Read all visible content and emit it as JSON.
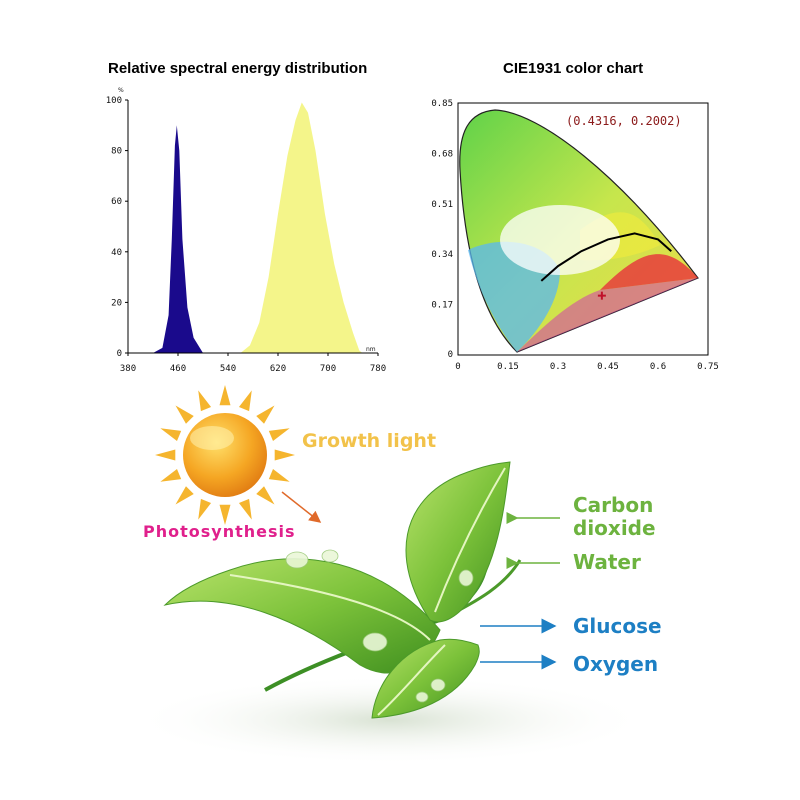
{
  "spectral_title": "Relative spectral energy distribution",
  "cie_title": "CIE1931 color chart",
  "chart_data": [
    {
      "type": "area",
      "title": "Relative spectral energy distribution",
      "ylabel_unit": "%",
      "xlabel_unit": "nm",
      "xlim": [
        380,
        780
      ],
      "ylim": [
        0,
        100
      ],
      "x_ticks": [
        380,
        460,
        540,
        620,
        700,
        780
      ],
      "y_ticks": [
        0,
        20,
        40,
        60,
        80,
        100
      ],
      "series": [
        {
          "values": [
            [
              420,
              0
            ],
            [
              435,
              2
            ],
            [
              445,
              15
            ],
            [
              450,
              45
            ],
            [
              455,
              82
            ],
            [
              458,
              90
            ],
            [
              462,
              80
            ],
            [
              467,
              45
            ],
            [
              475,
              18
            ],
            [
              485,
              6
            ],
            [
              500,
              0
            ]
          ]
        },
        {
          "values": [
            [
              560,
              0
            ],
            [
              575,
              3
            ],
            [
              590,
              12
            ],
            [
              605,
              30
            ],
            [
              620,
              55
            ],
            [
              635,
              78
            ],
            [
              648,
              92
            ],
            [
              658,
              99
            ],
            [
              668,
              95
            ],
            [
              680,
              80
            ],
            [
              695,
              55
            ],
            [
              710,
              35
            ],
            [
              725,
              20
            ],
            [
              740,
              8
            ],
            [
              750,
              1
            ],
            [
              755,
              0
            ]
          ]
        }
      ]
    },
    {
      "type": "scatter",
      "title": "CIE1931 color chart",
      "xlim": [
        0,
        0.75
      ],
      "ylim": [
        0,
        0.85
      ],
      "x_ticks": [
        "0",
        "0.15",
        "0.3",
        "0.45",
        "0.6",
        "0.75"
      ],
      "y_ticks": [
        "0.17",
        "0.34",
        "0.51",
        "0.68",
        "0.85"
      ],
      "point": {
        "x": 0.4316,
        "y": 0.2002
      },
      "point_label": "(0.4316,  0.2002)",
      "planckian_locus": [
        [
          0.25,
          0.25
        ],
        [
          0.3,
          0.3
        ],
        [
          0.37,
          0.35
        ],
        [
          0.45,
          0.39
        ],
        [
          0.53,
          0.41
        ],
        [
          0.6,
          0.39
        ],
        [
          0.64,
          0.35
        ]
      ]
    }
  ],
  "diagram": {
    "growth_light": "Growth light",
    "photosynthesis": "Photosynthesis",
    "inputs": [
      "Carbon",
      "dioxide",
      "Water"
    ],
    "outputs": [
      "Glucose",
      "Oxygen"
    ],
    "colors": {
      "input": "#6db33f",
      "output": "#1d7fc4",
      "photosynthesis": "#e0208c",
      "growth": "#f2c24a"
    }
  }
}
